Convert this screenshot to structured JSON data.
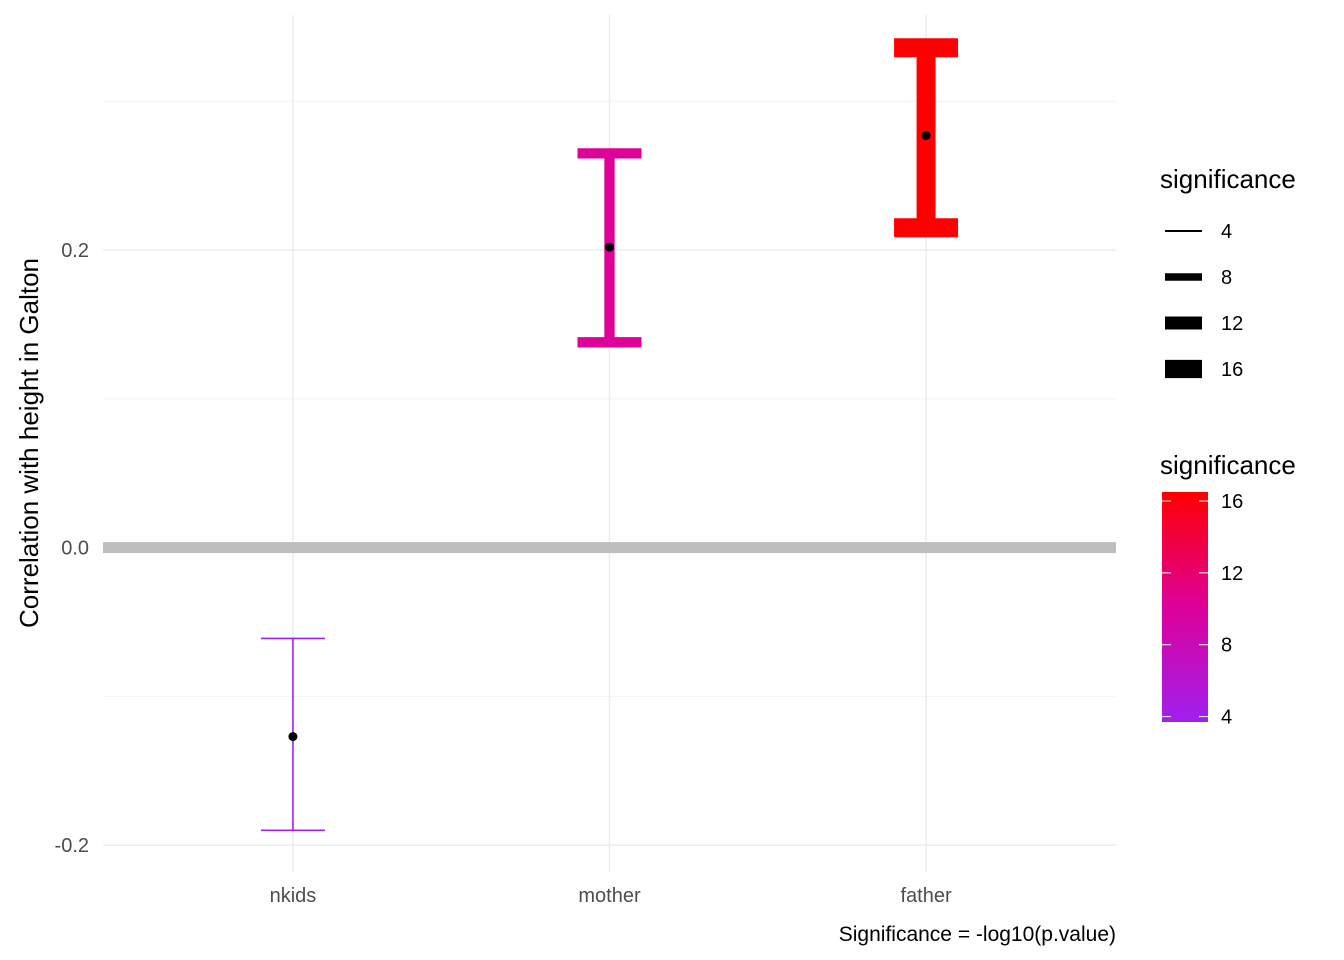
{
  "chart_data": {
    "type": "errorbar",
    "categories": [
      "nkids",
      "mother",
      "father"
    ],
    "points": [
      {
        "category": "nkids",
        "estimate": -0.127,
        "conf_low": -0.19,
        "conf_high": -0.061,
        "significance": 3.7,
        "color": "#A020F0"
      },
      {
        "category": "mother",
        "estimate": 0.202,
        "conf_low": 0.138,
        "conf_high": 0.265,
        "significance": 10.1,
        "color": "#DD0099"
      },
      {
        "category": "father",
        "estimate": 0.277,
        "conf_low": 0.215,
        "conf_high": 0.336,
        "significance": 16.5,
        "color": "#FF0000"
      }
    ],
    "xlabel": "",
    "ylabel": "Correlation with height in Galton",
    "ylim": [
      -0.218,
      0.358
    ],
    "yticks": [
      -0.2,
      0.0,
      0.2
    ],
    "ytick_labels": [
      "-0.2",
      "0.0",
      "0.2"
    ],
    "reference_line": {
      "y": 0.0,
      "color": "#BEBEBE"
    },
    "grid": true,
    "caption": "Significance = -log10(p.value)",
    "legend_position": "right",
    "legend_size": {
      "title": "significance",
      "breaks": [
        4,
        8,
        12,
        16
      ],
      "labels": [
        "4",
        "8",
        "12",
        "16"
      ]
    },
    "legend_color": {
      "title": "significance",
      "breaks": [
        4,
        8,
        12,
        16
      ],
      "labels": [
        "4",
        "8",
        "12",
        "16"
      ],
      "range": [
        3.7,
        16.5
      ],
      "low_color": "#A020F0",
      "high_color": "#FF0000"
    }
  }
}
